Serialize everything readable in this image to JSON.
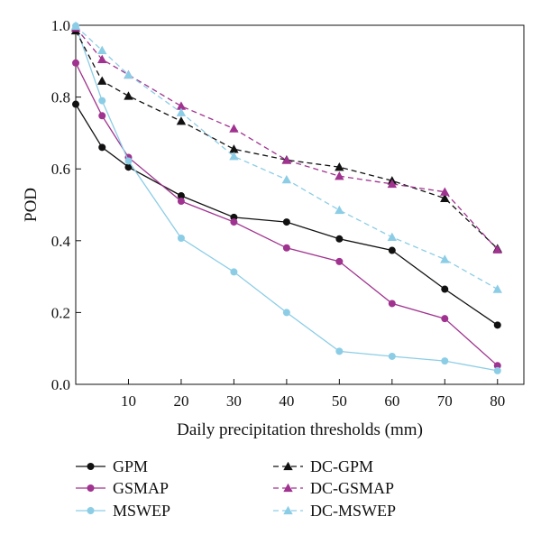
{
  "chart_data": {
    "type": "line",
    "xlabel": "Daily precipitation thresholds (mm)",
    "ylabel": "POD",
    "xlim": [
      0,
      85
    ],
    "ylim": [
      0,
      1.0
    ],
    "x_ticks": [
      10,
      20,
      30,
      40,
      50,
      60,
      70,
      80
    ],
    "y_ticks": [
      0.0,
      0.2,
      0.4,
      0.6,
      0.8,
      1.0
    ],
    "y_tick_labels": [
      "0.0",
      "0.2",
      "0.4",
      "0.6",
      "0.8",
      "1.0"
    ],
    "grid": false,
    "legend_position": "below plot, two columns",
    "x": [
      0,
      5,
      10,
      20,
      30,
      40,
      50,
      60,
      70,
      80
    ],
    "series": [
      {
        "name": "GPM",
        "values": [
          0.78,
          0.66,
          0.605,
          0.525,
          0.465,
          0.452,
          0.405,
          0.373,
          0.265,
          0.165
        ],
        "color": "#111111",
        "dash": "solid",
        "marker": "circle"
      },
      {
        "name": "GSMAP",
        "values": [
          0.895,
          0.748,
          0.632,
          0.51,
          0.452,
          0.38,
          0.342,
          0.225,
          0.183,
          0.052
        ],
        "color": "#a0338f",
        "dash": "solid",
        "marker": "circle"
      },
      {
        "name": "MSWEP",
        "values": [
          0.998,
          0.79,
          0.622,
          0.407,
          0.313,
          0.2,
          0.092,
          0.078,
          0.065,
          0.038
        ],
        "color": "#8ccde6",
        "dash": "solid",
        "marker": "circle"
      },
      {
        "name": "DC-GPM",
        "values": [
          0.985,
          0.845,
          0.803,
          0.733,
          0.655,
          0.625,
          0.605,
          0.567,
          0.518,
          0.378
        ],
        "color": "#111111",
        "dash": "dashed",
        "marker": "triangle"
      },
      {
        "name": "DC-GSMAP",
        "values": [
          0.993,
          0.905,
          0.862,
          0.775,
          0.712,
          0.624,
          0.58,
          0.558,
          0.536,
          0.375
        ],
        "color": "#a0338f",
        "dash": "dashed",
        "marker": "triangle"
      },
      {
        "name": "DC-MSWEP",
        "values": [
          0.998,
          0.93,
          0.862,
          0.757,
          0.635,
          0.57,
          0.485,
          0.41,
          0.348,
          0.265
        ],
        "color": "#8ccde6",
        "dash": "dashed",
        "marker": "triangle"
      }
    ]
  }
}
